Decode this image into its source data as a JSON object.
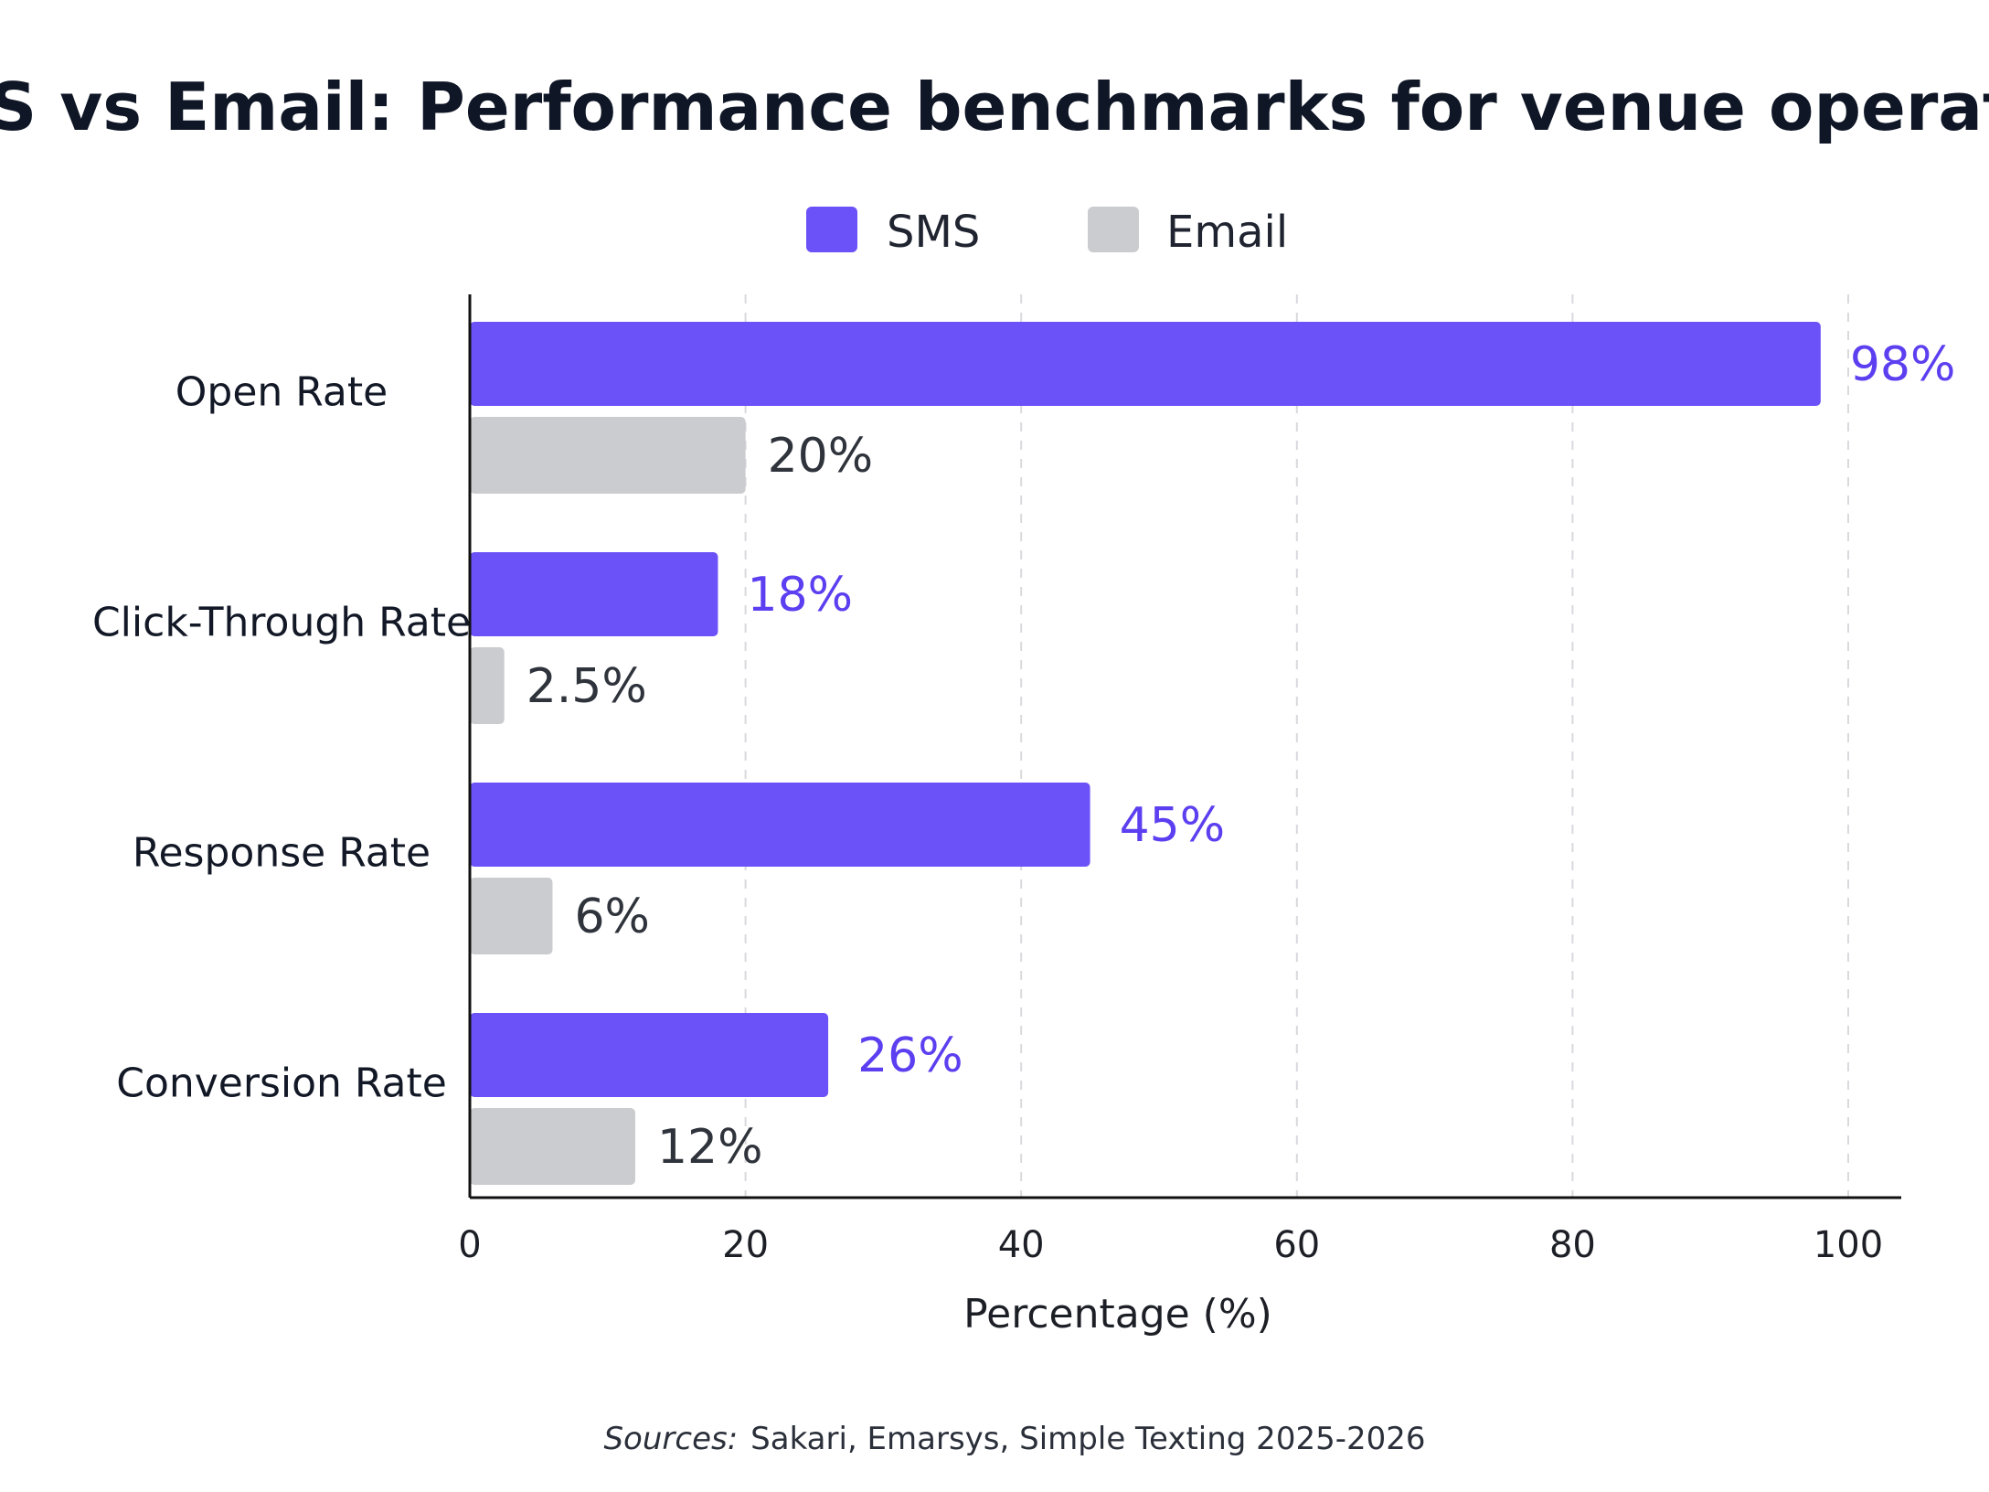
{
  "chart_data": {
    "type": "bar",
    "orientation": "horizontal",
    "title": "SMS vs Email: Performance benchmarks for venue operators",
    "categories": [
      "Open Rate",
      "Click-Through Rate",
      "Response Rate",
      "Conversion Rate"
    ],
    "series": [
      {
        "name": "SMS",
        "color": "#6b52f8",
        "label_color": "#5b3ff0",
        "values": [
          98,
          18,
          45,
          26
        ],
        "labels": [
          "98%",
          "18%",
          "45%",
          "26%"
        ]
      },
      {
        "name": "Email",
        "color": "#cbccd0",
        "label_color": "#2f333b",
        "values": [
          20,
          2.5,
          6,
          12
        ],
        "labels": [
          "20%",
          "2.5%",
          "6%",
          "12%"
        ]
      }
    ],
    "xlabel": "Percentage (%)",
    "ylabel": "",
    "xlim": [
      0,
      100
    ],
    "xticks": [
      "0",
      "20",
      "40",
      "60",
      "80",
      "100"
    ],
    "grid": true,
    "legend": "top-center"
  },
  "source": {
    "prefix": "Sources:",
    "text": "Sakari, Emarsys, Simple Texting 2025-2026"
  }
}
